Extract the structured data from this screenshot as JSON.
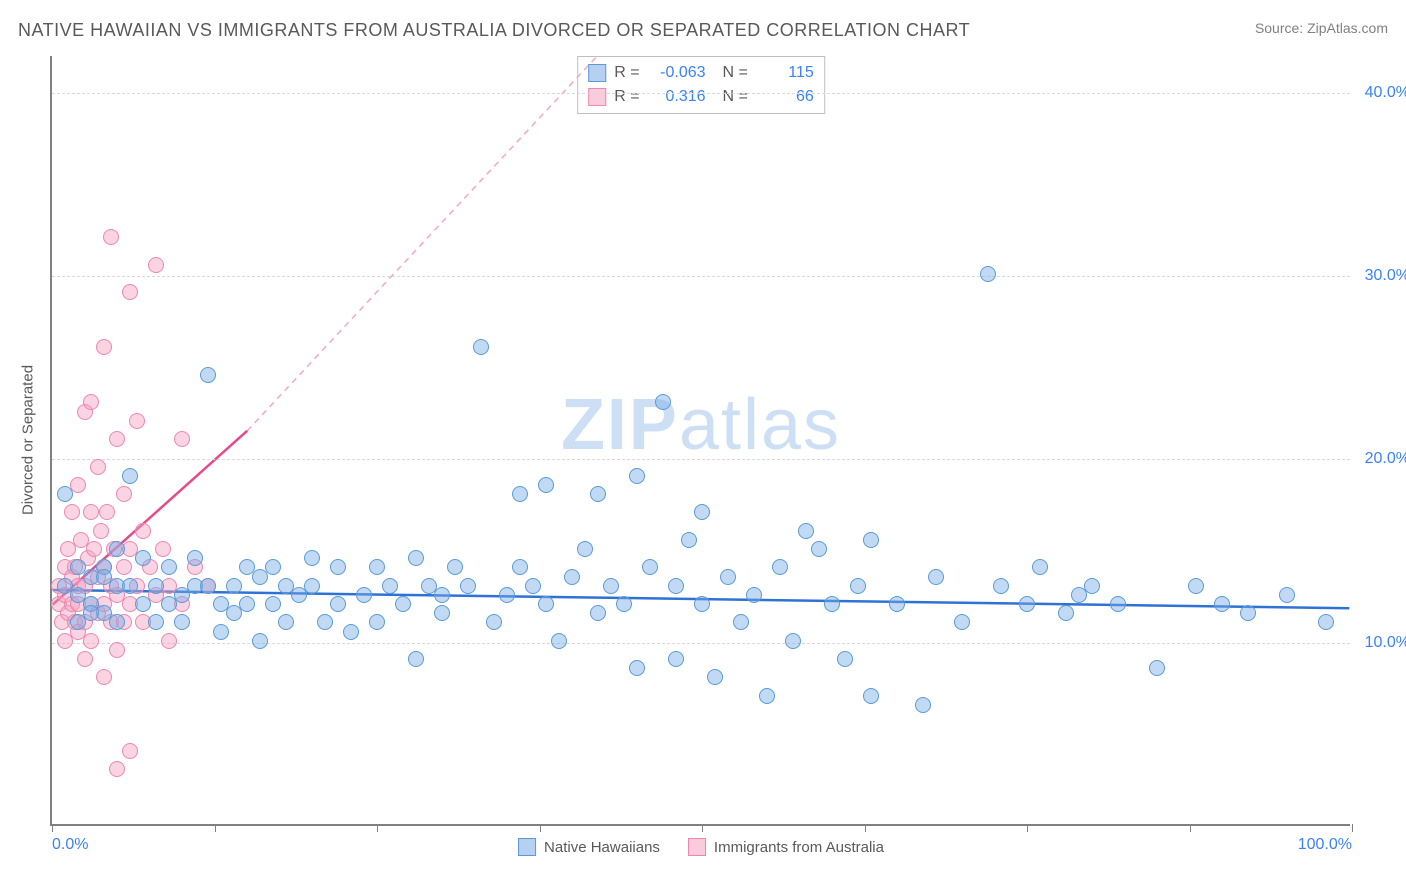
{
  "header": {
    "title": "NATIVE HAWAIIAN VS IMMIGRANTS FROM AUSTRALIA DIVORCED OR SEPARATED CORRELATION CHART",
    "source": "Source: ZipAtlas.com"
  },
  "chart": {
    "type": "scatter",
    "watermark": "ZIPatlas",
    "ylabel": "Divorced or Separated",
    "background_color": "#ffffff",
    "grid_color": "#d9d9d9",
    "axis_color": "#808080",
    "tick_label_color": "#3b82f6",
    "text_color": "#595959",
    "title_fontsize": 18,
    "label_fontsize": 15,
    "tick_fontsize": 16,
    "point_radius": 8,
    "xlim": [
      0,
      100
    ],
    "ylim": [
      0,
      42
    ],
    "yticks": [
      10,
      20,
      30,
      40
    ],
    "ytick_labels": [
      "10.0%",
      "20.0%",
      "30.0%",
      "40.0%"
    ],
    "xtick_positions": [
      0,
      12.5,
      25,
      37.5,
      50,
      62.5,
      75,
      87.5,
      100
    ],
    "xtick_labels_shown": {
      "0": "0.0%",
      "100": "100.0%"
    },
    "series_blue": {
      "label": "Native Hawaiians",
      "fill": "rgba(120,170,230,0.45)",
      "stroke": "#5a9bd5",
      "R": "-0.063",
      "N": "115",
      "trend": {
        "x1": 0,
        "y1": 12.8,
        "x2": 100,
        "y2": 11.8,
        "color": "#2f72d6",
        "width": 2.5,
        "dash": "none"
      },
      "points": [
        [
          1,
          13
        ],
        [
          2,
          12.5
        ],
        [
          2,
          11
        ],
        [
          3,
          13.5
        ],
        [
          3,
          12
        ],
        [
          4,
          14
        ],
        [
          4,
          11.5
        ],
        [
          5,
          15
        ],
        [
          5,
          13
        ],
        [
          5,
          11
        ],
        [
          6,
          19
        ],
        [
          6,
          13
        ],
        [
          7,
          12
        ],
        [
          7,
          14.5
        ],
        [
          8,
          13
        ],
        [
          8,
          11
        ],
        [
          9,
          14
        ],
        [
          9,
          12
        ],
        [
          10,
          12.5
        ],
        [
          10,
          11
        ],
        [
          11,
          13
        ],
        [
          11,
          14.5
        ],
        [
          12,
          24.5
        ],
        [
          12,
          13
        ],
        [
          13,
          12
        ],
        [
          13,
          10.5
        ],
        [
          14,
          13
        ],
        [
          14,
          11.5
        ],
        [
          15,
          14
        ],
        [
          15,
          12
        ],
        [
          16,
          13.5
        ],
        [
          16,
          10
        ],
        [
          17,
          12
        ],
        [
          17,
          14
        ],
        [
          18,
          11
        ],
        [
          18,
          13
        ],
        [
          19,
          12.5
        ],
        [
          20,
          13
        ],
        [
          20,
          14.5
        ],
        [
          21,
          11
        ],
        [
          22,
          12
        ],
        [
          22,
          14
        ],
        [
          23,
          10.5
        ],
        [
          24,
          12.5
        ],
        [
          25,
          14
        ],
        [
          25,
          11
        ],
        [
          26,
          13
        ],
        [
          27,
          12
        ],
        [
          28,
          14.5
        ],
        [
          28,
          9
        ],
        [
          29,
          13
        ],
        [
          30,
          11.5
        ],
        [
          30,
          12.5
        ],
        [
          31,
          14
        ],
        [
          32,
          13
        ],
        [
          33,
          26
        ],
        [
          34,
          11
        ],
        [
          35,
          12.5
        ],
        [
          36,
          18
        ],
        [
          36,
          14
        ],
        [
          37,
          13
        ],
        [
          38,
          18.5
        ],
        [
          38,
          12
        ],
        [
          39,
          10
        ],
        [
          40,
          13.5
        ],
        [
          41,
          15
        ],
        [
          42,
          18
        ],
        [
          42,
          11.5
        ],
        [
          43,
          13
        ],
        [
          44,
          12
        ],
        [
          45,
          19
        ],
        [
          45,
          8.5
        ],
        [
          46,
          14
        ],
        [
          47,
          23
        ],
        [
          48,
          13
        ],
        [
          48,
          9
        ],
        [
          49,
          15.5
        ],
        [
          50,
          12
        ],
        [
          50,
          17
        ],
        [
          51,
          8
        ],
        [
          52,
          13.5
        ],
        [
          53,
          11
        ],
        [
          54,
          12.5
        ],
        [
          55,
          7
        ],
        [
          56,
          14
        ],
        [
          57,
          10
        ],
        [
          58,
          16
        ],
        [
          59,
          15
        ],
        [
          60,
          12
        ],
        [
          61,
          9
        ],
        [
          62,
          13
        ],
        [
          63,
          15.5
        ],
        [
          63,
          7
        ],
        [
          65,
          12
        ],
        [
          67,
          6.5
        ],
        [
          68,
          13.5
        ],
        [
          70,
          11
        ],
        [
          72,
          30
        ],
        [
          73,
          13
        ],
        [
          75,
          12
        ],
        [
          76,
          14
        ],
        [
          78,
          11.5
        ],
        [
          79,
          12.5
        ],
        [
          80,
          13
        ],
        [
          82,
          12
        ],
        [
          85,
          8.5
        ],
        [
          88,
          13
        ],
        [
          90,
          12
        ],
        [
          92,
          11.5
        ],
        [
          95,
          12.5
        ],
        [
          98,
          11
        ],
        [
          1,
          18
        ],
        [
          2,
          14
        ],
        [
          3,
          11.5
        ],
        [
          4,
          13.5
        ]
      ]
    },
    "series_pink": {
      "label": "Immigrants from Australia",
      "fill": "rgba(245,160,190,0.45)",
      "stroke": "#ec87b0",
      "R": "0.316",
      "N": "66",
      "trend_solid": {
        "x1": 0,
        "y1": 12,
        "x2": 15,
        "y2": 21.5,
        "color": "#e54b8c",
        "width": 2.5
      },
      "trend_dash": {
        "x1": 15,
        "y1": 21.5,
        "x2": 42,
        "y2": 42,
        "color": "#f2a7c4",
        "width": 1.5,
        "dash": "6,5"
      },
      "points": [
        [
          0.5,
          12
        ],
        [
          0.5,
          13
        ],
        [
          0.8,
          11
        ],
        [
          1,
          14
        ],
        [
          1,
          12.5
        ],
        [
          1,
          10
        ],
        [
          1.2,
          15
        ],
        [
          1.2,
          11.5
        ],
        [
          1.5,
          13.5
        ],
        [
          1.5,
          12
        ],
        [
          1.5,
          17
        ],
        [
          1.8,
          14
        ],
        [
          1.8,
          11
        ],
        [
          2,
          18.5
        ],
        [
          2,
          13
        ],
        [
          2,
          10.5
        ],
        [
          2,
          12
        ],
        [
          2.2,
          15.5
        ],
        [
          2.5,
          22.5
        ],
        [
          2.5,
          13
        ],
        [
          2.5,
          11
        ],
        [
          2.5,
          9
        ],
        [
          2.8,
          14.5
        ],
        [
          3,
          17
        ],
        [
          3,
          12
        ],
        [
          3,
          10
        ],
        [
          3,
          23
        ],
        [
          3.2,
          15
        ],
        [
          3.5,
          19.5
        ],
        [
          3.5,
          13.5
        ],
        [
          3.5,
          11.5
        ],
        [
          3.8,
          16
        ],
        [
          4,
          26
        ],
        [
          4,
          14
        ],
        [
          4,
          12
        ],
        [
          4,
          8
        ],
        [
          4.2,
          17
        ],
        [
          4.5,
          32
        ],
        [
          4.5,
          13
        ],
        [
          4.5,
          11
        ],
        [
          4.8,
          15
        ],
        [
          5,
          21
        ],
        [
          5,
          12.5
        ],
        [
          5,
          9.5
        ],
        [
          5,
          3
        ],
        [
          5.5,
          18
        ],
        [
          5.5,
          14
        ],
        [
          5.5,
          11
        ],
        [
          6,
          29
        ],
        [
          6,
          15
        ],
        [
          6,
          12
        ],
        [
          6.5,
          22
        ],
        [
          6.5,
          13
        ],
        [
          7,
          16
        ],
        [
          7,
          11
        ],
        [
          7.5,
          14
        ],
        [
          8,
          30.5
        ],
        [
          8,
          12.5
        ],
        [
          8.5,
          15
        ],
        [
          9,
          13
        ],
        [
          9,
          10
        ],
        [
          10,
          21
        ],
        [
          10,
          12
        ],
        [
          11,
          14
        ],
        [
          12,
          13
        ],
        [
          6,
          4
        ]
      ]
    }
  }
}
